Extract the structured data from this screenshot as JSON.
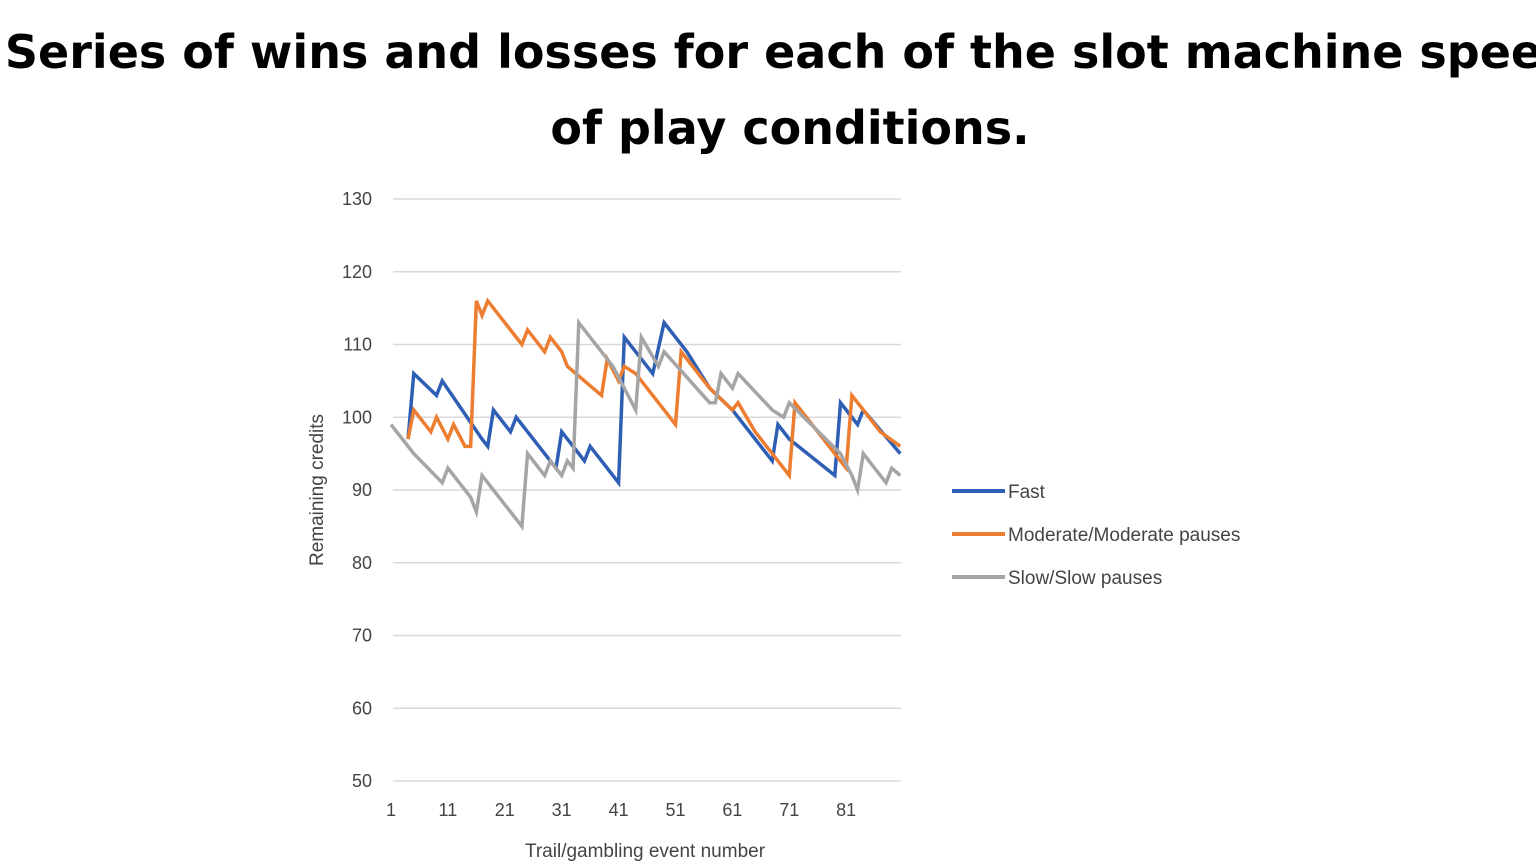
{
  "chart_data": {
    "type": "line",
    "title": "Series of wins and losses for each of the slot machine speed of play conditions.",
    "xlabel": "Trail/gambling event number",
    "ylabel": "Remaining credits",
    "xlim": [
      1,
      91
    ],
    "ylim": [
      50,
      130
    ],
    "x_ticks": [
      1,
      11,
      21,
      31,
      41,
      51,
      61,
      71,
      81
    ],
    "y_ticks": [
      50,
      60,
      70,
      80,
      90,
      100,
      110,
      120,
      130
    ],
    "grid": true,
    "legend": "right",
    "series": [
      {
        "name": "Fast",
        "color": "#2e5fb5",
        "points": [
          [
            4,
            97
          ],
          [
            5,
            106
          ],
          [
            9,
            103
          ],
          [
            10,
            105
          ],
          [
            17,
            97
          ],
          [
            18,
            96
          ],
          [
            19,
            101
          ],
          [
            22,
            98
          ],
          [
            23,
            100
          ],
          [
            30,
            93
          ],
          [
            31,
            98
          ],
          [
            33,
            96
          ],
          [
            34,
            95
          ],
          [
            35,
            94
          ],
          [
            36,
            96
          ],
          [
            41,
            91
          ],
          [
            42,
            111
          ],
          [
            46,
            107
          ],
          [
            47,
            106
          ],
          [
            49,
            113
          ],
          [
            51,
            111
          ],
          [
            53,
            109
          ],
          [
            57,
            104
          ],
          [
            61,
            101
          ],
          [
            65,
            97
          ],
          [
            68,
            94
          ],
          [
            69,
            99
          ],
          [
            71,
            97
          ],
          [
            79,
            92
          ],
          [
            80,
            102
          ],
          [
            82,
            100
          ],
          [
            83,
            99
          ],
          [
            84,
            101
          ],
          [
            90.5,
            95
          ]
        ]
      },
      {
        "name": "Moderate/Moderate pauses",
        "color": "#ed7d31",
        "points": [
          [
            4,
            97
          ],
          [
            5,
            101
          ],
          [
            8,
            98
          ],
          [
            9,
            100
          ],
          [
            11,
            97
          ],
          [
            12,
            99
          ],
          [
            14,
            96
          ],
          [
            15,
            96
          ],
          [
            16,
            116
          ],
          [
            17,
            114
          ],
          [
            18,
            116
          ],
          [
            24,
            110
          ],
          [
            25,
            112
          ],
          [
            28,
            109
          ],
          [
            29,
            111
          ],
          [
            31,
            109
          ],
          [
            32,
            107
          ],
          [
            38,
            103
          ],
          [
            39,
            108
          ],
          [
            41,
            105
          ],
          [
            42,
            107
          ],
          [
            44,
            106
          ],
          [
            51,
            99
          ],
          [
            52,
            109
          ],
          [
            57,
            104
          ],
          [
            61,
            101
          ],
          [
            62,
            102
          ],
          [
            65,
            98
          ],
          [
            71,
            92
          ],
          [
            72,
            102
          ],
          [
            79,
            95
          ],
          [
            81,
            93
          ],
          [
            82,
            103
          ],
          [
            87,
            98
          ],
          [
            90.5,
            96
          ]
        ]
      },
      {
        "name": "Slow/Slow pauses",
        "color": "#a5a5a5",
        "points": [
          [
            1,
            99
          ],
          [
            5,
            95
          ],
          [
            10,
            91
          ],
          [
            11,
            93
          ],
          [
            15,
            89
          ],
          [
            16,
            87
          ],
          [
            17,
            92
          ],
          [
            19,
            90
          ],
          [
            23,
            86
          ],
          [
            24,
            85
          ],
          [
            25,
            95
          ],
          [
            28,
            92
          ],
          [
            29,
            94
          ],
          [
            31,
            92
          ],
          [
            32,
            94
          ],
          [
            33,
            93
          ],
          [
            34,
            113
          ],
          [
            40,
            107
          ],
          [
            44,
            101
          ],
          [
            45,
            111
          ],
          [
            48,
            107
          ],
          [
            49,
            109
          ],
          [
            57,
            102
          ],
          [
            58,
            102
          ],
          [
            59,
            106
          ],
          [
            61,
            104
          ],
          [
            62,
            106
          ],
          [
            68,
            101
          ],
          [
            70,
            100
          ],
          [
            71,
            102
          ],
          [
            80,
            95
          ],
          [
            82,
            92
          ],
          [
            83,
            90
          ],
          [
            84,
            95
          ],
          [
            87,
            92
          ],
          [
            88,
            91
          ],
          [
            89,
            93
          ],
          [
            90.5,
            92
          ]
        ]
      }
    ]
  }
}
